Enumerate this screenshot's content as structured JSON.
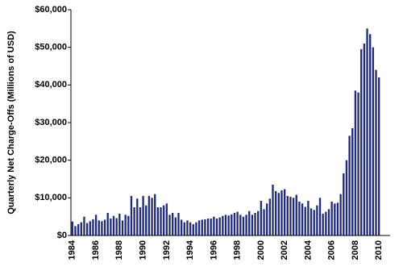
{
  "chart_data": {
    "type": "bar",
    "y_label": "Quarterly Net Charge-Offs (Millions of USD)",
    "color": "#1f2a80",
    "categories": [
      "1984",
      null,
      null,
      null,
      null,
      null,
      null,
      null,
      "1986",
      null,
      null,
      null,
      null,
      null,
      null,
      null,
      "1988",
      null,
      null,
      null,
      null,
      null,
      null,
      null,
      "1990",
      null,
      null,
      null,
      null,
      null,
      null,
      null,
      "1992",
      null,
      null,
      null,
      null,
      null,
      null,
      null,
      "1994",
      null,
      null,
      null,
      null,
      null,
      null,
      null,
      "1996",
      null,
      null,
      null,
      null,
      null,
      null,
      null,
      "1998",
      null,
      null,
      null,
      null,
      null,
      null,
      null,
      "2000",
      null,
      null,
      null,
      null,
      null,
      null,
      null,
      "2002",
      null,
      null,
      null,
      null,
      null,
      null,
      null,
      "2004",
      null,
      null,
      null,
      null,
      null,
      null,
      null,
      "2006",
      null,
      null,
      null,
      null,
      null,
      null,
      null,
      "2008",
      null,
      null,
      null,
      null,
      null,
      null,
      null,
      "2010"
    ],
    "values": [
      3700,
      2500,
      3000,
      3500,
      5000,
      3300,
      3800,
      4300,
      5500,
      4000,
      3800,
      4200,
      6000,
      4500,
      5200,
      4600,
      5800,
      4000,
      5500,
      5200,
      10500,
      7500,
      9800,
      7500,
      10500,
      8000,
      10500,
      10000,
      11000,
      7500,
      7500,
      8000,
      8500,
      5500,
      6000,
      4800,
      6000,
      4200,
      3500,
      4000,
      3500,
      3000,
      3500,
      4000,
      4200,
      4300,
      4500,
      4500,
      5000,
      4500,
      4800,
      5200,
      5500,
      5300,
      5600,
      6000,
      6300,
      5500,
      5000,
      5500,
      6500,
      5500,
      6000,
      6500,
      9200,
      7000,
      8500,
      9800,
      13500,
      11800,
      11300,
      12000,
      12300,
      10500,
      10300,
      10000,
      10800,
      9000,
      8500,
      7600,
      9200,
      7200,
      6800,
      8000,
      10000,
      5800,
      6300,
      7000,
      9000,
      8500,
      8700,
      11000,
      16500,
      20000,
      26500,
      28500,
      38500,
      38000,
      49500,
      51000,
      55000,
      53500,
      50000,
      44000,
      42000
    ],
    "ylim": [
      0,
      60000
    ],
    "yticks": [
      {
        "value": 0,
        "label": "$0"
      },
      {
        "value": 10000,
        "label": "$10,000"
      },
      {
        "value": 20000,
        "label": "$20,000"
      },
      {
        "value": 30000,
        "label": "$30,000"
      },
      {
        "value": 40000,
        "label": "$40,000"
      },
      {
        "value": 50000,
        "label": "$50,000"
      },
      {
        "value": 60000,
        "label": "$60,000"
      }
    ]
  }
}
